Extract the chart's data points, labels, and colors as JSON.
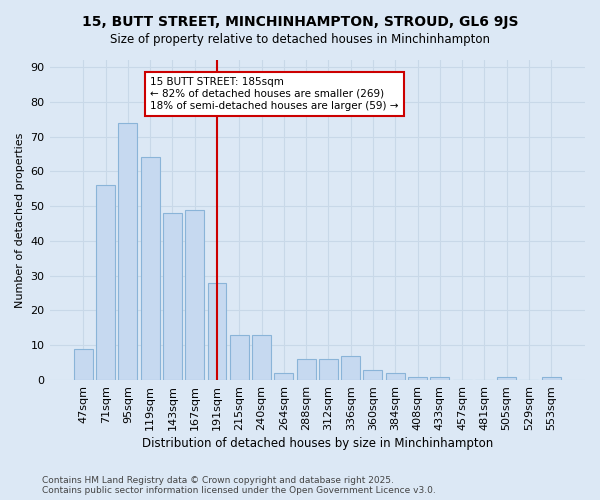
{
  "title": "15, BUTT STREET, MINCHINHAMPTON, STROUD, GL6 9JS",
  "subtitle": "Size of property relative to detached houses in Minchinhampton",
  "xlabel": "Distribution of detached houses by size in Minchinhampton",
  "ylabel": "Number of detached properties",
  "bar_values": [
    9,
    56,
    74,
    64,
    48,
    49,
    28,
    13,
    13,
    2,
    6,
    6,
    7,
    3,
    2,
    1,
    1,
    0,
    0,
    1,
    0,
    1
  ],
  "categories": [
    "47sqm",
    "71sqm",
    "95sqm",
    "119sqm",
    "143sqm",
    "167sqm",
    "191sqm",
    "215sqm",
    "240sqm",
    "264sqm",
    "288sqm",
    "312sqm",
    "336sqm",
    "360sqm",
    "384sqm",
    "408sqm",
    "433sqm",
    "457sqm",
    "481sqm",
    "505sqm",
    "529sqm",
    "553sqm"
  ],
  "bar_color": "#c6d9f0",
  "bar_edge_color": "#8ab4d8",
  "vline_x": 6.0,
  "vline_color": "#cc0000",
  "annotation_text": "15 BUTT STREET: 185sqm\n← 82% of detached houses are smaller (269)\n18% of semi-detached houses are larger (59) →",
  "annotation_box_color": "#ffffff",
  "annotation_border_color": "#cc0000",
  "ylim": [
    0,
    92
  ],
  "yticks": [
    0,
    10,
    20,
    30,
    40,
    50,
    60,
    70,
    80,
    90
  ],
  "grid_color": "#c8d8e8",
  "bg_color": "#dce8f5",
  "footer": "Contains HM Land Registry data © Crown copyright and database right 2025.\nContains public sector information licensed under the Open Government Licence v3.0."
}
